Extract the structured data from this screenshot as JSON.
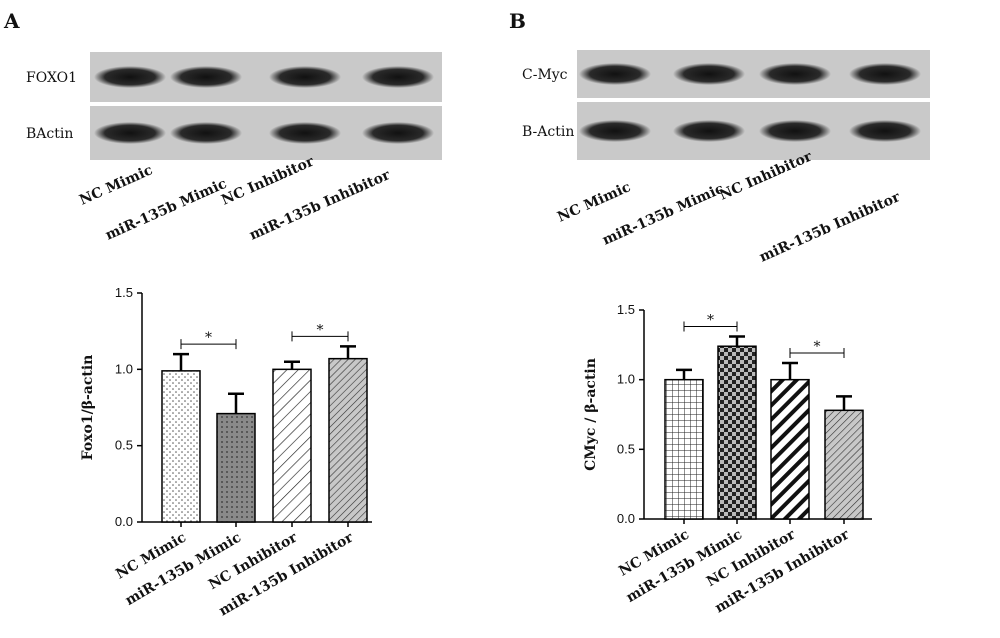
{
  "chart_data": [
    {
      "type": "bar",
      "panel": "A",
      "blot_rows": [
        "FOXO1",
        "BActin"
      ],
      "categories": [
        "NC Mimic",
        "miR-135b Mimic",
        "NC Inhibitor",
        "miR-135b Inhibitor"
      ],
      "values": [
        0.99,
        0.71,
        1.0,
        1.07
      ],
      "errors": [
        0.11,
        0.13,
        0.05,
        0.08
      ],
      "patterns": [
        "dots-light",
        "dots-dark",
        "hatch",
        "hatch-gray"
      ],
      "y_label": "Foxo1/β-actin",
      "ylim": [
        0,
        1.5
      ],
      "yticks": [
        {
          "value": 0,
          "label": "0.0"
        },
        0.5,
        {
          "value": 1,
          "label": "1.0"
        },
        1.5
      ],
      "annotations": [
        "*",
        "*"
      ]
    },
    {
      "type": "bar",
      "panel": "B",
      "blot_rows": [
        "C-Myc",
        "B-Actin"
      ],
      "categories": [
        "NC Mimic",
        "miR-135b Mimic",
        "NC Inhibitor",
        "miR-135b Inhibitor"
      ],
      "values": [
        1.0,
        1.24,
        1.0,
        0.78
      ],
      "errors": [
        0.07,
        0.07,
        0.12,
        0.1
      ],
      "patterns": [
        "grid",
        "checker",
        "thick-hatch",
        "hatch-gray"
      ],
      "y_label": "CMyc / β-actin",
      "ylim": [
        0,
        1.5
      ],
      "yticks": [
        {
          "value": 0,
          "label": "0.0"
        },
        0.5,
        {
          "value": 1,
          "label": "1.0"
        },
        1.5
      ],
      "annotations": [
        "*",
        "*"
      ]
    }
  ]
}
